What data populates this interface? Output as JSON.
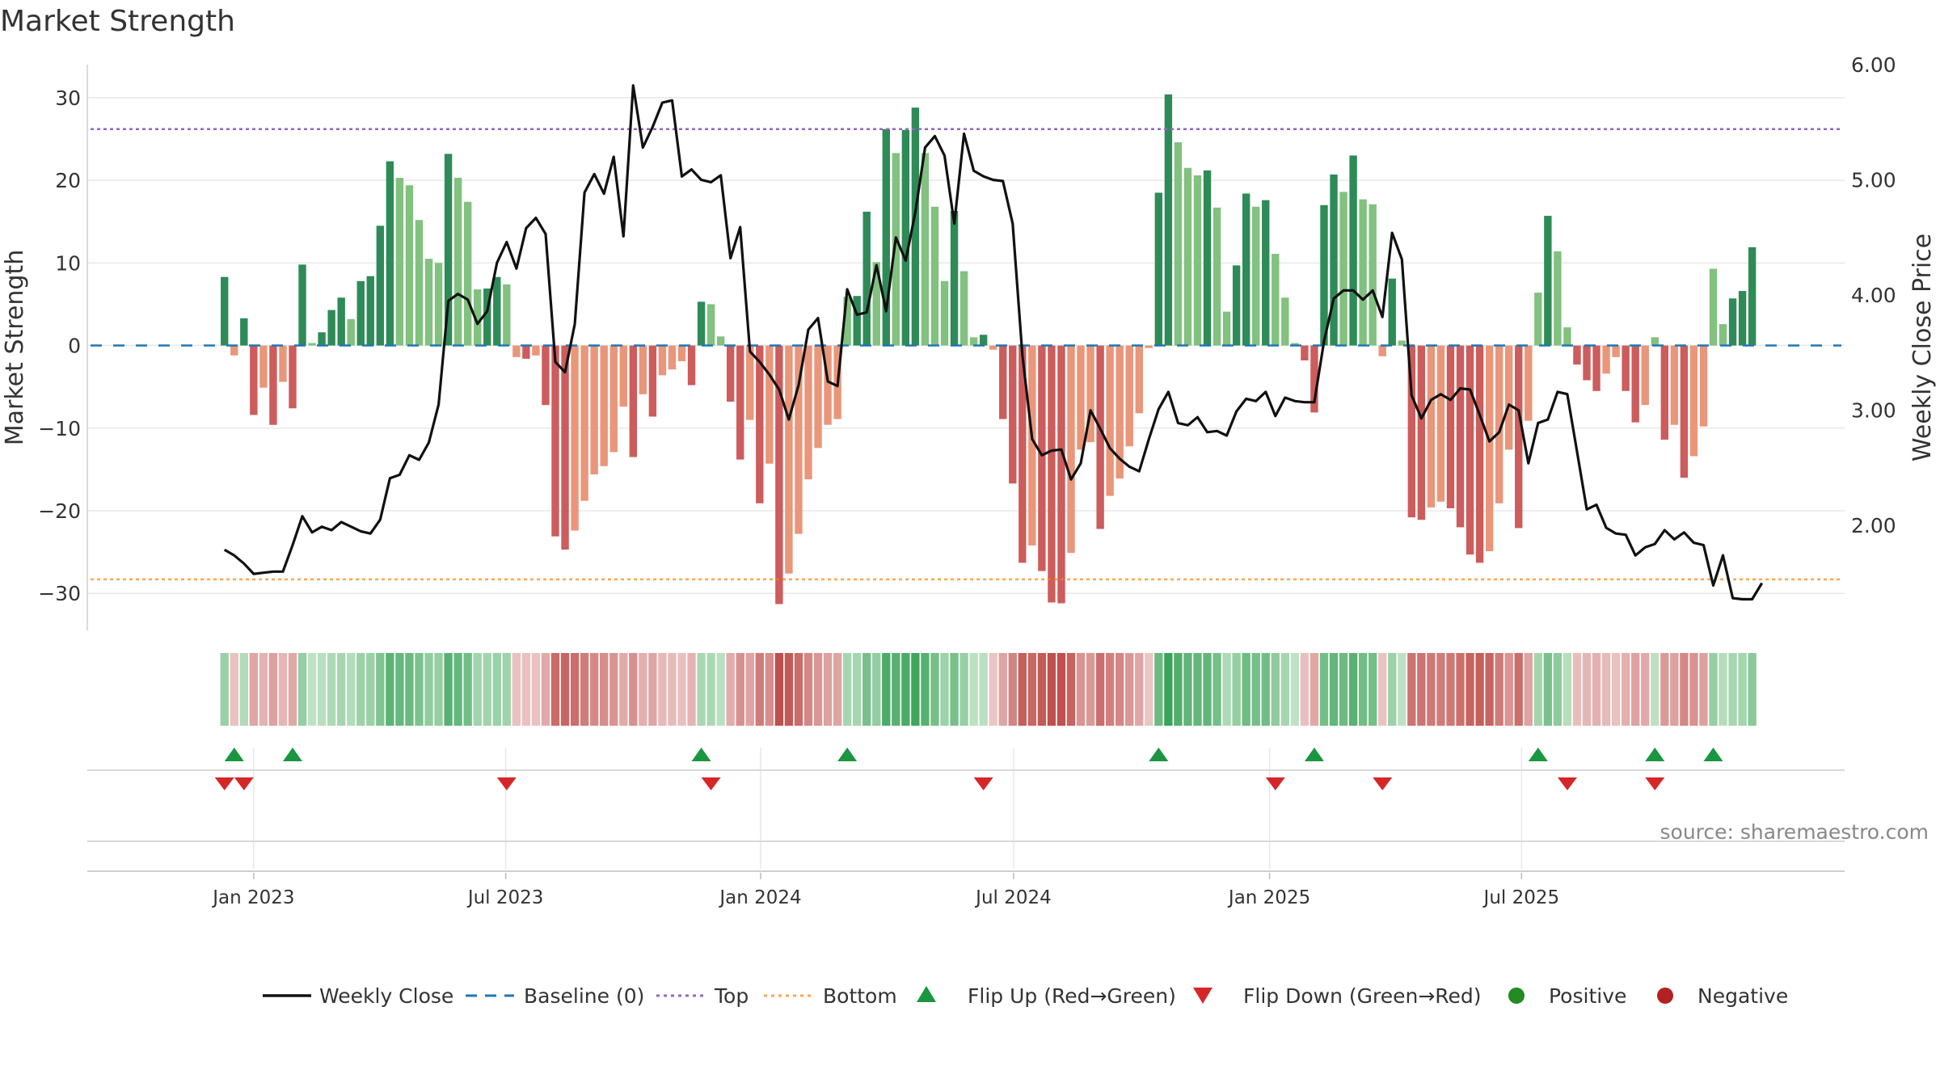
{
  "chart_data": {
    "type": "bar",
    "title": "Market Strength",
    "ylabel_left": "Market Strength",
    "ylabel_right": "Weekly Close Price",
    "y_left_range": [
      -33.5,
      34
    ],
    "y_left_ticks": [
      30,
      20,
      10,
      0,
      -10,
      -20,
      -30
    ],
    "y_left_tick_labels": [
      "30",
      "20",
      "10",
      "0",
      "−10",
      "−20",
      "−30"
    ],
    "y_right_range": [
      1.16,
      6.0
    ],
    "y_right_ticks": [
      6.0,
      5.0,
      4.0,
      3.0,
      2.0
    ],
    "y_right_tick_labels": [
      "6.00",
      "5.00",
      "4.00",
      "3.00",
      "2.00"
    ],
    "x_range_weeks": [
      -14.1,
      166.5
    ],
    "x_ticks": [
      {
        "label": "Jan 2023",
        "week": 3.0
      },
      {
        "label": "Jul 2023",
        "week": 28.9
      },
      {
        "label": "Jan 2024",
        "week": 55.1
      },
      {
        "label": "Jul 2024",
        "week": 81.1
      },
      {
        "label": "Jan 2025",
        "week": 107.4
      },
      {
        "label": "Jul 2025",
        "week": 133.3
      }
    ],
    "reference_lines": {
      "top": 26.2,
      "bottom": -28.3,
      "baseline": 0
    },
    "strength": [
      8.3,
      -1.2,
      3.3,
      -8.4,
      -5.1,
      -9.6,
      -4.4,
      -7.6,
      9.8,
      0.3,
      1.6,
      4.3,
      5.8,
      3.2,
      7.8,
      8.4,
      14.5,
      22.3,
      20.3,
      19.4,
      15.2,
      10.5,
      10.0,
      23.2,
      20.3,
      17.4,
      6.8,
      6.9,
      8.3,
      7.4,
      -1.4,
      -1.6,
      -1.2,
      -7.2,
      -23.1,
      -24.7,
      -22.4,
      -18.8,
      -15.6,
      -14.6,
      -12.9,
      -7.4,
      -13.5,
      -5.9,
      -8.6,
      -3.6,
      -2.9,
      -1.9,
      -4.8,
      5.3,
      5.0,
      1.1,
      -6.8,
      -13.8,
      -9.0,
      -19.1,
      -14.3,
      -31.3,
      -27.6,
      -22.8,
      -16.2,
      -12.4,
      -9.6,
      -8.9,
      5.9,
      6.0,
      16.2,
      10.1,
      26.2,
      23.3,
      26.1,
      28.8,
      23.3,
      16.8,
      7.8,
      16.3,
      9.0,
      1.0,
      1.3,
      -0.5,
      -8.9,
      -16.7,
      -26.3,
      -24.2,
      -27.3,
      -31.1,
      -31.2,
      -25.1,
      -12.6,
      -11.7,
      -22.2,
      -18.2,
      -16.1,
      -12.2,
      -8.2,
      -0.3,
      18.5,
      30.4,
      24.6,
      21.5,
      20.6,
      21.2,
      16.7,
      4.1,
      9.7,
      18.4,
      16.8,
      17.6,
      11.1,
      5.8,
      0.3,
      -1.8,
      -8.1,
      17.0,
      20.7,
      18.6,
      23.0,
      17.7,
      17.1,
      -1.3,
      8.1,
      0.6,
      -20.8,
      -21.1,
      -19.6,
      -18.9,
      -19.7,
      -22.0,
      -25.3,
      -26.3,
      -24.9,
      -19.1,
      -12.6,
      -22.1,
      -9.1,
      6.4,
      15.7,
      11.4,
      2.2,
      -2.3,
      -4.2,
      -5.5,
      -3.4,
      -1.4,
      -5.5,
      -9.3,
      -7.2,
      1.0,
      -11.4,
      -9.6,
      -16.0,
      -13.4,
      -9.8,
      9.3,
      2.6,
      5.7,
      6.6,
      11.9
    ],
    "weekly_close": [
      1.79,
      1.74,
      1.67,
      1.58,
      1.59,
      1.6,
      1.6,
      1.83,
      2.08,
      1.94,
      1.99,
      1.96,
      2.03,
      1.99,
      1.95,
      1.93,
      2.05,
      2.41,
      2.44,
      2.61,
      2.57,
      2.72,
      3.05,
      3.95,
      4.01,
      3.96,
      3.75,
      3.86,
      4.28,
      4.46,
      4.23,
      4.58,
      4.67,
      4.53,
      3.42,
      3.33,
      3.75,
      4.89,
      5.05,
      4.88,
      5.2,
      4.51,
      5.82,
      5.28,
      5.46,
      5.67,
      5.69,
      5.03,
      5.09,
      5.0,
      4.98,
      5.04,
      4.32,
      4.59,
      3.51,
      3.42,
      3.31,
      3.18,
      2.92,
      3.22,
      3.7,
      3.8,
      3.25,
      3.21,
      4.05,
      3.83,
      3.85,
      4.26,
      3.86,
      4.5,
      4.3,
      4.72,
      5.28,
      5.38,
      5.21,
      4.62,
      5.4,
      5.08,
      5.03,
      5.0,
      4.99,
      4.62,
      3.48,
      2.75,
      2.61,
      2.65,
      2.66,
      2.4,
      2.54,
      3.0,
      2.84,
      2.67,
      2.58,
      2.51,
      2.47,
      2.75,
      3.01,
      3.16,
      2.89,
      2.87,
      2.94,
      2.81,
      2.82,
      2.78,
      2.99,
      3.1,
      3.08,
      3.16,
      2.95,
      3.11,
      3.08,
      3.07,
      3.07,
      3.6,
      3.97,
      4.04,
      4.04,
      3.96,
      4.04,
      3.81,
      4.54,
      4.31,
      3.13,
      2.93,
      3.09,
      3.14,
      3.09,
      3.19,
      3.18,
      2.96,
      2.73,
      2.81,
      3.05,
      3.0,
      2.54,
      2.89,
      2.92,
      3.16,
      3.14,
      2.64,
      2.14,
      2.18,
      1.98,
      1.93,
      1.92,
      1.74,
      1.81,
      1.84,
      1.96,
      1.88,
      1.94,
      1.85,
      1.83,
      1.48,
      1.74,
      1.37,
      1.36,
      1.36,
      1.5
    ],
    "flip_up_weeks": [
      1,
      7,
      49,
      64,
      96,
      112,
      135,
      147,
      153
    ],
    "flip_down_weeks": [
      0,
      2,
      29,
      50,
      78,
      108,
      119,
      138,
      147
    ],
    "legend": {
      "weekly_close": "Weekly Close",
      "baseline": "Baseline (0)",
      "top": "Top",
      "bottom": "Bottom",
      "flip_up": "Flip Up (Red→Green)",
      "flip_down": "Flip Down (Green→Red)",
      "positive": "Positive",
      "negative": "Negative"
    },
    "legend_placement": "bottom-center",
    "source": "source: sharemaestro.com"
  },
  "colors": {
    "bar_pos_strong": "#2e8b57",
    "bar_pos_weak": "#82c17f",
    "bar_neg_strong": "#cd5c5c",
    "bar_neg_weak": "#e9967a",
    "line": "#111111",
    "baseline": "#1f77b4",
    "top": "#9467bd",
    "bottom": "#ff7f0e",
    "flip_up": "#1a9641",
    "flip_down": "#d62728",
    "positive": "#228b22",
    "negative": "#b22222",
    "grid": "#e8e8e8"
  }
}
